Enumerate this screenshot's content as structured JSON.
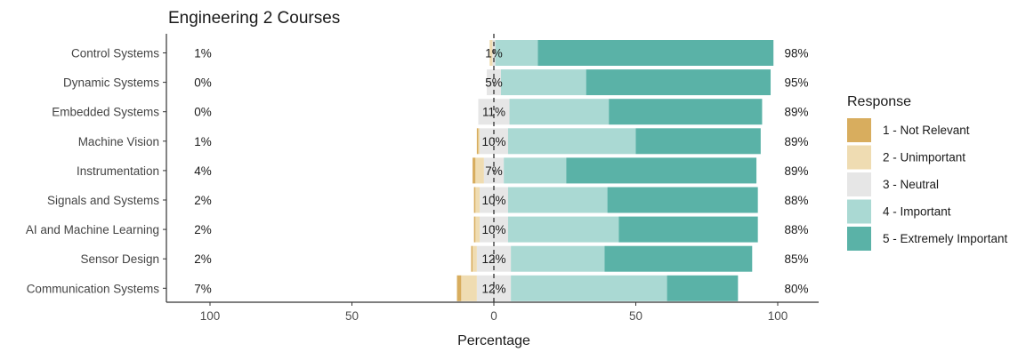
{
  "chart_data": {
    "type": "bar",
    "subtype": "diverging-stacked-likert",
    "title": "Engineering 2 Courses",
    "xlabel": "Percentage",
    "ylabel": "",
    "xlim": [
      -100,
      100
    ],
    "x_ticks": [
      "100",
      "50",
      "0",
      "50",
      "100"
    ],
    "grid": false,
    "legend_title": "Response",
    "legend_position": "right",
    "legend": [
      {
        "label": "1 - Not Relevant",
        "color": "#d8ad5e"
      },
      {
        "label": "2 - Unimportant",
        "color": "#efdcb2"
      },
      {
        "label": "3 - Neutral",
        "color": "#e6e6e6"
      },
      {
        "label": "4 - Important",
        "color": "#aad9d3"
      },
      {
        "label": "5 - Extremely Important",
        "color": "#5ab2a7"
      }
    ],
    "categories": [
      "Control Systems",
      "Dynamic Systems",
      "Embedded Systems",
      "Machine Vision",
      "Instrumentation",
      "Signals and Systems",
      "AI and Machine Learning",
      "Sensor Design",
      "Communication Systems"
    ],
    "series": [
      {
        "name": "1 - Not Relevant",
        "values": [
          0.0,
          0.0,
          0.0,
          0.5,
          1.0,
          0.5,
          0.5,
          0.5,
          1.5
        ]
      },
      {
        "name": "2 - Unimportant",
        "values": [
          1.0,
          0.0,
          0.0,
          0.5,
          3.0,
          1.5,
          1.5,
          1.5,
          5.5
        ]
      },
      {
        "name": "3 - Neutral",
        "values": [
          1.0,
          5.0,
          11.0,
          10.0,
          7.0,
          10.0,
          10.0,
          12.0,
          12.0
        ]
      },
      {
        "name": "4 - Important",
        "values": [
          15.0,
          30.0,
          35.0,
          45.0,
          22.0,
          35.0,
          39.0,
          33.0,
          55.0
        ]
      },
      {
        "name": "5 - Extremely Important",
        "values": [
          83.0,
          65.0,
          54.0,
          44.0,
          67.0,
          53.0,
          49.0,
          52.0,
          25.0
        ]
      }
    ],
    "low_labels": [
      "1%",
      "0%",
      "0%",
      "1%",
      "4%",
      "2%",
      "2%",
      "2%",
      "7%"
    ],
    "neutral_labels": [
      "1%",
      "5%",
      "11%",
      "10%",
      "7%",
      "10%",
      "10%",
      "12%",
      "12%"
    ],
    "high_labels": [
      "98%",
      "95%",
      "89%",
      "89%",
      "89%",
      "88%",
      "88%",
      "85%",
      "80%"
    ]
  }
}
